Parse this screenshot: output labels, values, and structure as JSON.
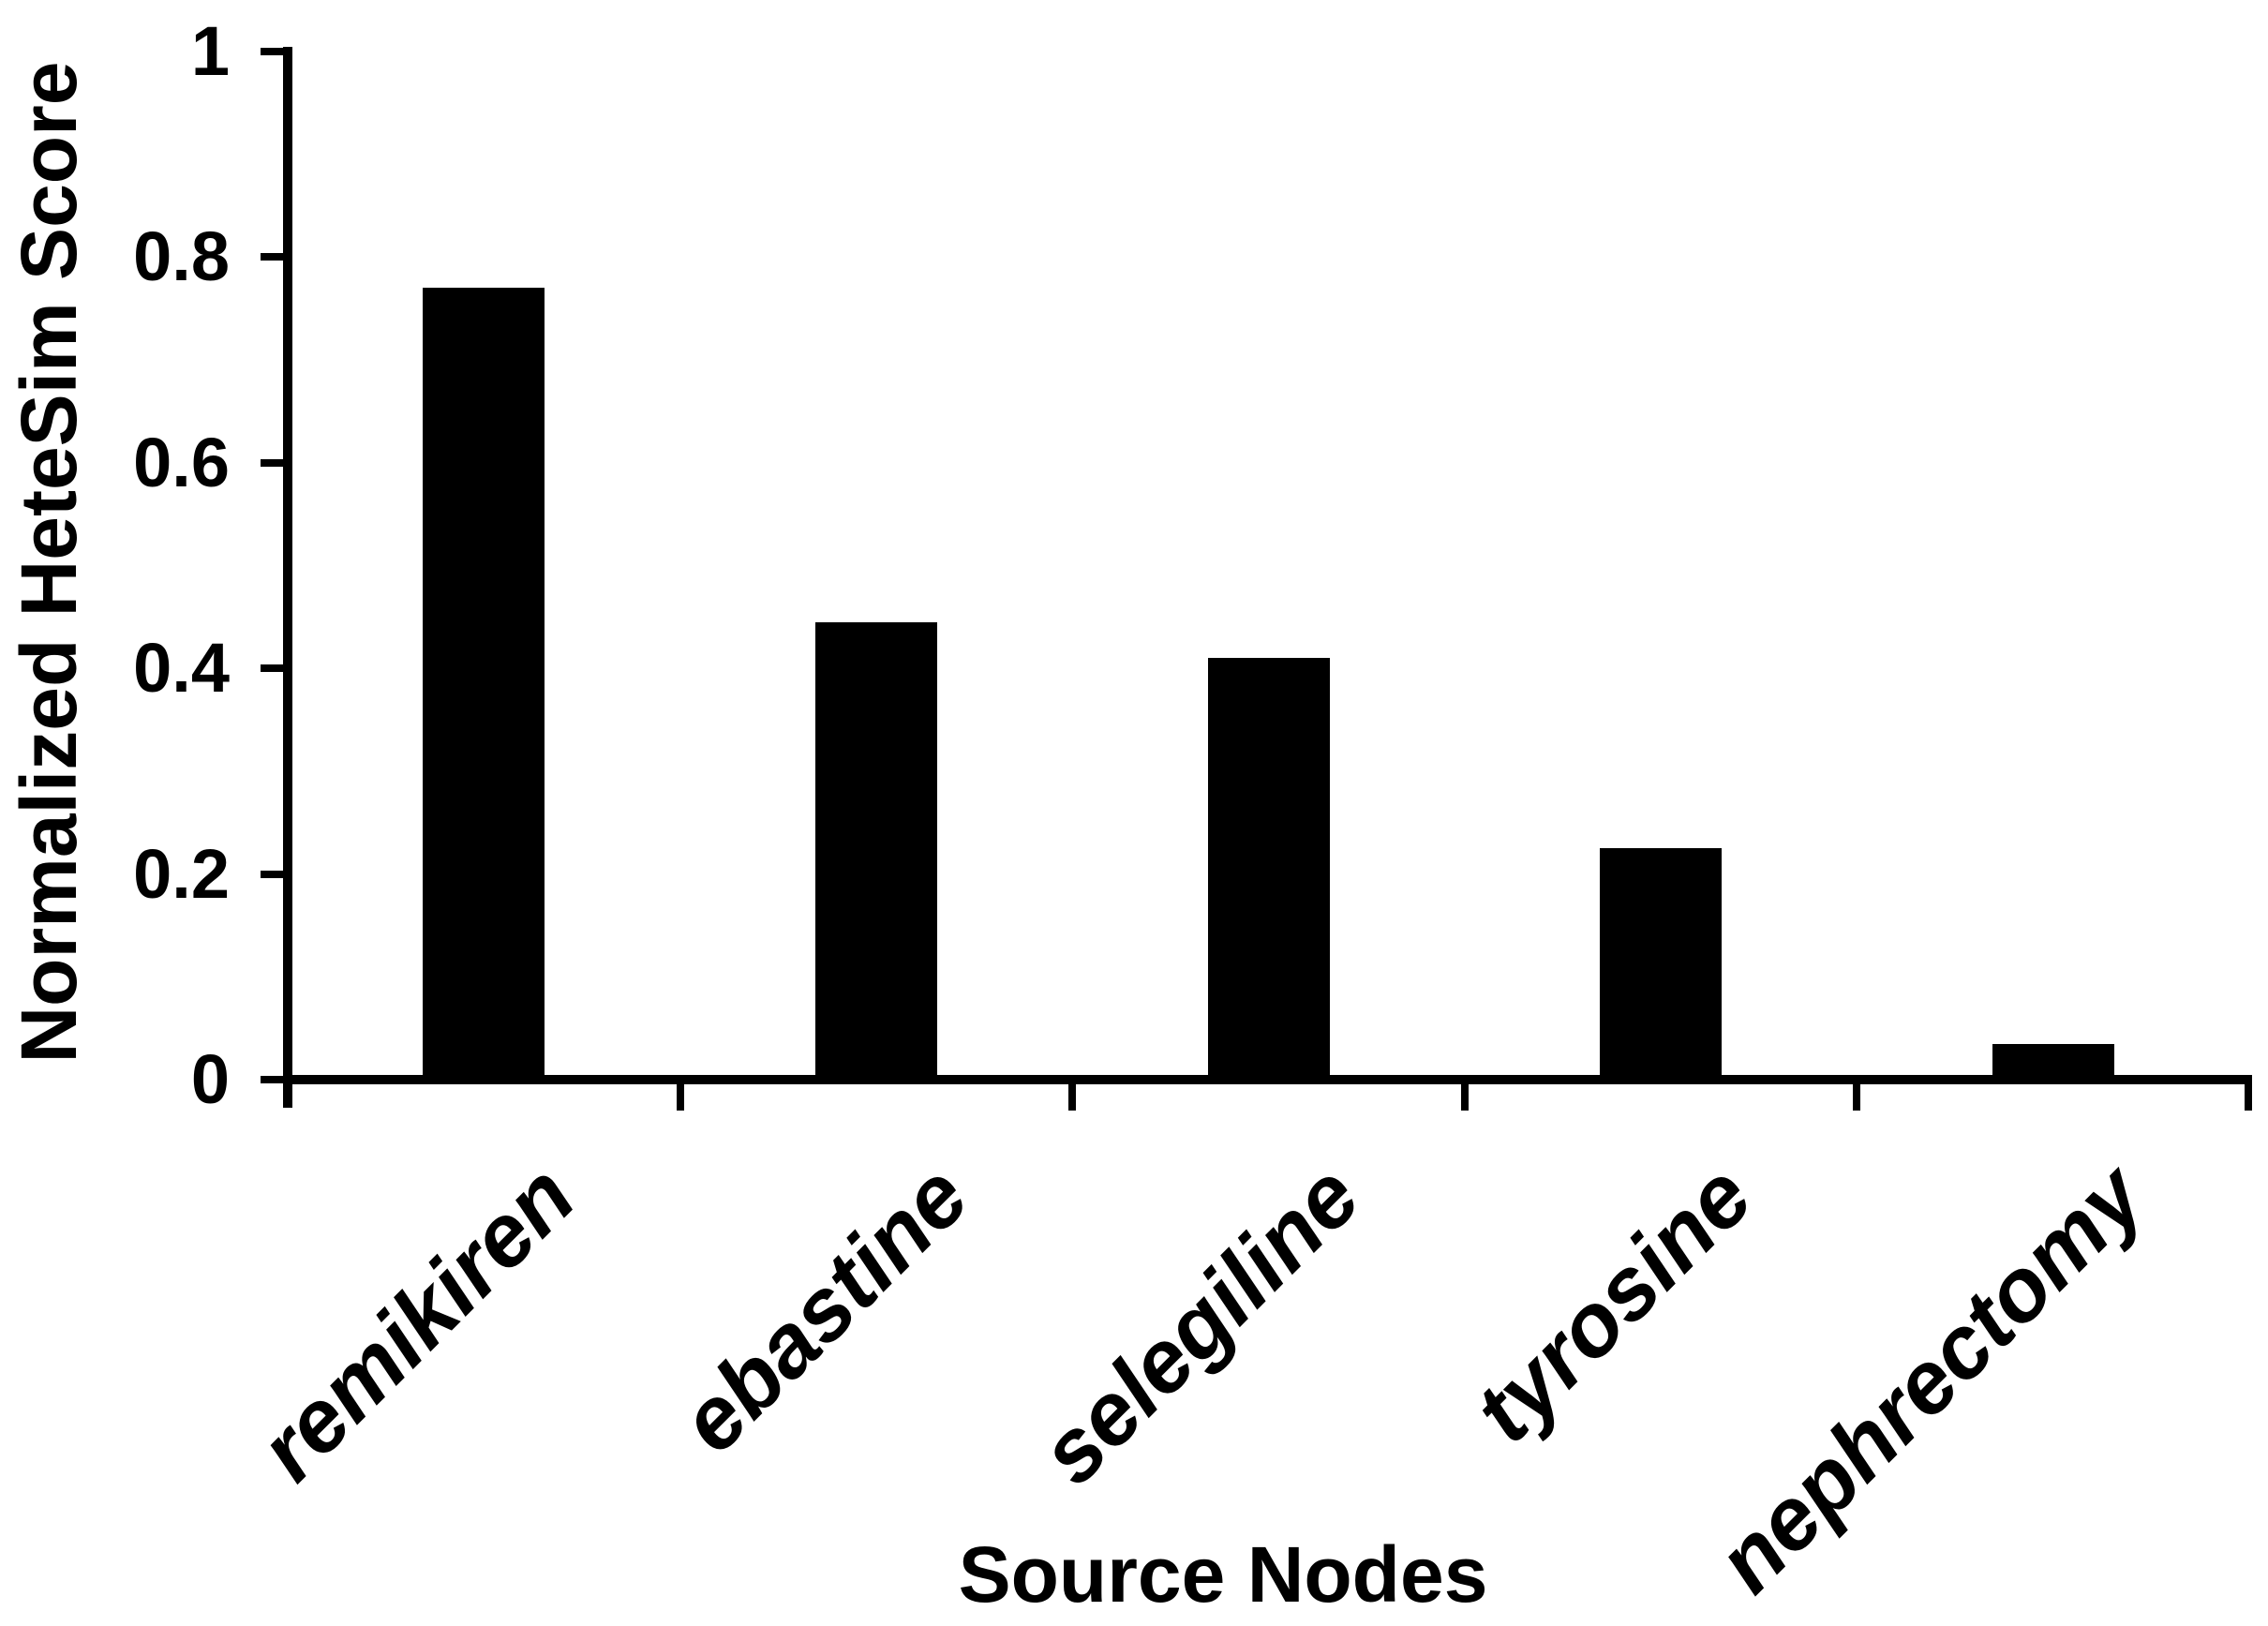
{
  "chart_data": {
    "type": "bar",
    "title": "",
    "xlabel": "Source Nodes",
    "ylabel": "Normalized HeteSim Score",
    "categories": [
      "remikiren",
      "ebastine",
      "selegiline",
      "tyrosine",
      "nephrectomy"
    ],
    "values": [
      0.77,
      0.445,
      0.41,
      0.225,
      0.035
    ],
    "ylim": [
      0,
      1
    ],
    "ytick_labels": [
      "0",
      "0.2",
      "0.4",
      "0.6",
      "0.8",
      "1"
    ],
    "bar_color": "#000000",
    "axis_color": "#000000",
    "text_color": "#000000",
    "background": "#ffffff",
    "grid": false,
    "legend": "none",
    "bar_orientation": "vertical",
    "x_label_rotation_deg": 45
  }
}
